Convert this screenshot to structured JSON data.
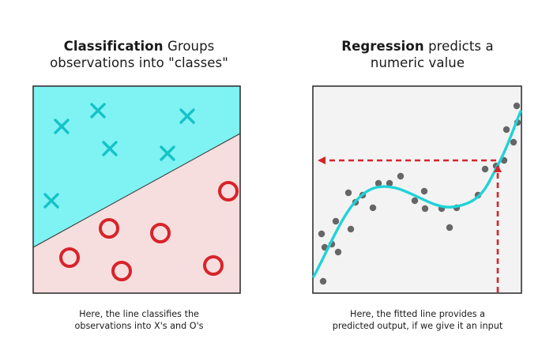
{
  "classification": {
    "title_bold": "Classification",
    "title_rest": "Groups",
    "title_line2": "observations into \"classes\"",
    "caption_line1": "Here, the line classifies the",
    "caption_line2": "observations into X's and O's",
    "colors": {
      "upper_region": "#7ff2f3",
      "lower_region": "#f6dede",
      "x_marker": "#14c3c8",
      "o_marker": "#d8232a",
      "border": "#333333"
    },
    "icons": {
      "x_marker": "x-mark-icon",
      "o_marker": "o-circle-icon"
    }
  },
  "regression": {
    "title_bold": "Regression",
    "title_rest": "predicts a",
    "title_line2": "numeric value",
    "caption_line1": "Here, the fitted line provides a",
    "caption_line2": "predicted output, if we give it an input",
    "colors": {
      "background": "#f3f3f3",
      "points": "#666666",
      "fit_line": "#1fd3d8",
      "arrow": "#d8232a",
      "border": "#333333"
    },
    "icons": {
      "arrow": "dashed-arrow-icon"
    }
  }
}
